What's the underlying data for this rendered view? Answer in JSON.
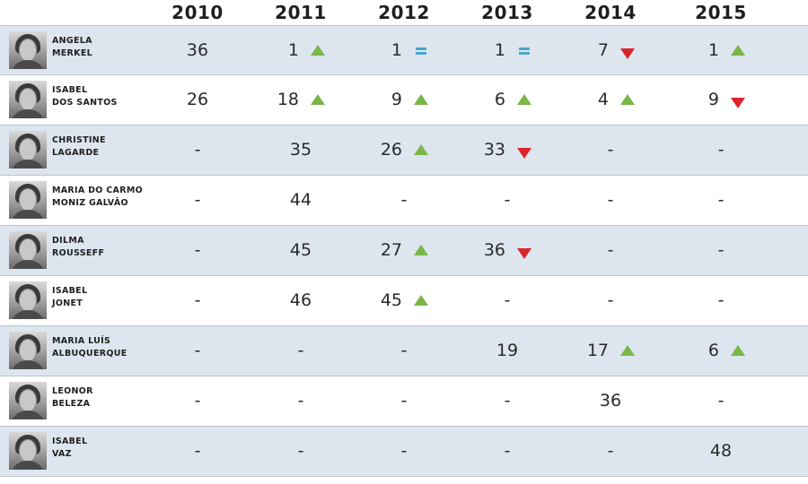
{
  "colors": {
    "up": "#7ab648",
    "down": "#d9262a",
    "equal": "#4aa6c9",
    "stripe": "#dde6ef",
    "rule": "#b9c4cf"
  },
  "chart_data": {
    "type": "table",
    "columns": [
      "2010",
      "2011",
      "2012",
      "2013",
      "2014",
      "2015"
    ],
    "rows": [
      {
        "name_line1": "ANGELA",
        "name_line2": "MERKEL",
        "cells": [
          {
            "value": "36",
            "change": null
          },
          {
            "value": "1",
            "change": "up"
          },
          {
            "value": "1",
            "change": "equal"
          },
          {
            "value": "1",
            "change": "equal"
          },
          {
            "value": "7",
            "change": "down"
          },
          {
            "value": "1",
            "change": "up"
          }
        ]
      },
      {
        "name_line1": "ISABEL",
        "name_line2": "DOS SANTOS",
        "cells": [
          {
            "value": "26",
            "change": null
          },
          {
            "value": "18",
            "change": "up"
          },
          {
            "value": "9",
            "change": "up"
          },
          {
            "value": "6",
            "change": "up"
          },
          {
            "value": "4",
            "change": "up"
          },
          {
            "value": "9",
            "change": "down"
          }
        ]
      },
      {
        "name_line1": "CHRISTINE",
        "name_line2": "LAGARDE",
        "cells": [
          {
            "value": "-",
            "change": null
          },
          {
            "value": "35",
            "change": null
          },
          {
            "value": "26",
            "change": "up"
          },
          {
            "value": "33",
            "change": "down"
          },
          {
            "value": "-",
            "change": null
          },
          {
            "value": "-",
            "change": null
          }
        ]
      },
      {
        "name_line1": "MARIA DO CARMO",
        "name_line2": "MONIZ GALVÃO",
        "cells": [
          {
            "value": "-",
            "change": null
          },
          {
            "value": "44",
            "change": null
          },
          {
            "value": "-",
            "change": null
          },
          {
            "value": "-",
            "change": null
          },
          {
            "value": "-",
            "change": null
          },
          {
            "value": "-",
            "change": null
          }
        ]
      },
      {
        "name_line1": "DILMA",
        "name_line2": "ROUSSEFF",
        "cells": [
          {
            "value": "-",
            "change": null
          },
          {
            "value": "45",
            "change": null
          },
          {
            "value": "27",
            "change": "up"
          },
          {
            "value": "36",
            "change": "down"
          },
          {
            "value": "-",
            "change": null
          },
          {
            "value": "-",
            "change": null
          }
        ]
      },
      {
        "name_line1": "ISABEL",
        "name_line2": "JONET",
        "cells": [
          {
            "value": "-",
            "change": null
          },
          {
            "value": "46",
            "change": null
          },
          {
            "value": "45",
            "change": "up"
          },
          {
            "value": "-",
            "change": null
          },
          {
            "value": "-",
            "change": null
          },
          {
            "value": "-",
            "change": null
          }
        ]
      },
      {
        "name_line1": "MARIA LUÍS",
        "name_line2": "ALBUQUERQUE",
        "cells": [
          {
            "value": "-",
            "change": null
          },
          {
            "value": "-",
            "change": null
          },
          {
            "value": "-",
            "change": null
          },
          {
            "value": "19",
            "change": null
          },
          {
            "value": "17",
            "change": "up"
          },
          {
            "value": "6",
            "change": "up"
          }
        ]
      },
      {
        "name_line1": "LEONOR",
        "name_line2": "BELEZA",
        "cells": [
          {
            "value": "-",
            "change": null
          },
          {
            "value": "-",
            "change": null
          },
          {
            "value": "-",
            "change": null
          },
          {
            "value": "-",
            "change": null
          },
          {
            "value": "36",
            "change": null
          },
          {
            "value": "-",
            "change": null
          }
        ]
      },
      {
        "name_line1": "ISABEL",
        "name_line2": "VAZ",
        "cells": [
          {
            "value": "-",
            "change": null
          },
          {
            "value": "-",
            "change": null
          },
          {
            "value": "-",
            "change": null
          },
          {
            "value": "-",
            "change": null
          },
          {
            "value": "-",
            "change": null
          },
          {
            "value": "48",
            "change": null
          }
        ]
      }
    ]
  }
}
